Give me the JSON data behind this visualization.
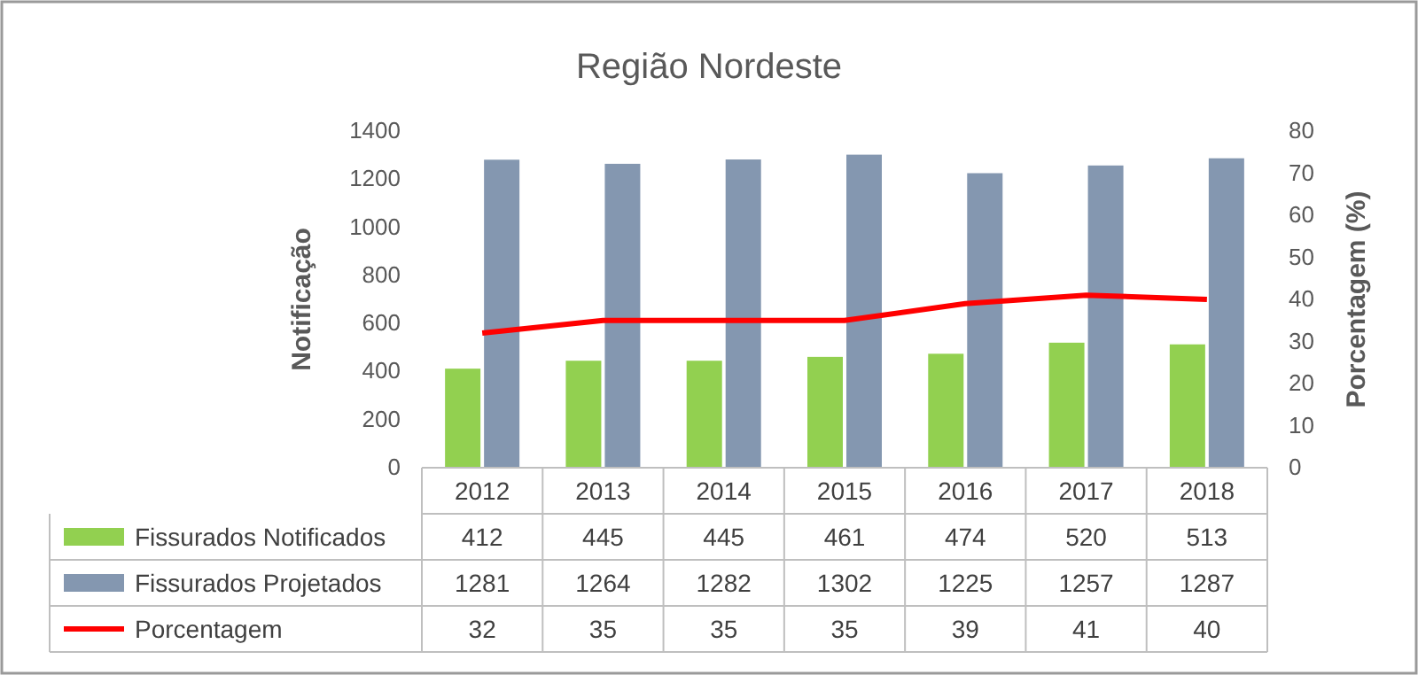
{
  "chart_data": {
    "type": "bar",
    "title": "Região Nordeste",
    "ylabel": "Notificação",
    "y2label": "Porcentagem (%)",
    "categories": [
      "2012",
      "2013",
      "2014",
      "2015",
      "2016",
      "2017",
      "2018"
    ],
    "series": [
      {
        "name": "Fissurados Notificados",
        "color": "#92d050",
        "values": [
          412,
          445,
          445,
          461,
          474,
          520,
          513
        ]
      },
      {
        "name": "Fissurados Projetados",
        "color": "#8497b0",
        "values": [
          1281,
          1264,
          1282,
          1302,
          1225,
          1257,
          1287
        ]
      },
      {
        "name": "Porcentagem",
        "type": "line",
        "axis": "y2",
        "color": "#ff0000",
        "values": [
          32,
          35,
          35,
          35,
          39,
          41,
          40
        ]
      }
    ],
    "ylim": [
      0,
      1400
    ],
    "yticks": [
      0,
      200,
      400,
      600,
      800,
      1000,
      1200,
      1400
    ],
    "y2lim": [
      0,
      80
    ],
    "y2ticks": [
      0,
      10,
      20,
      30,
      40,
      50,
      60,
      70,
      80
    ],
    "data_labels": true,
    "legend": "bottom",
    "grid": false,
    "marker": "none",
    "line_style": "solid"
  }
}
